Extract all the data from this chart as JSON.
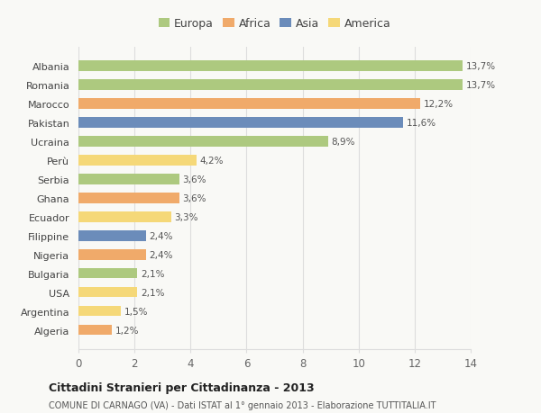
{
  "categories": [
    "Albania",
    "Romania",
    "Marocco",
    "Pakistan",
    "Ucraina",
    "Perù",
    "Serbia",
    "Ghana",
    "Ecuador",
    "Filippine",
    "Nigeria",
    "Bulgaria",
    "USA",
    "Argentina",
    "Algeria"
  ],
  "values": [
    13.7,
    13.7,
    12.2,
    11.6,
    8.9,
    4.2,
    3.6,
    3.6,
    3.3,
    2.4,
    2.4,
    2.1,
    2.1,
    1.5,
    1.2
  ],
  "labels": [
    "13,7%",
    "13,7%",
    "12,2%",
    "11,6%",
    "8,9%",
    "4,2%",
    "3,6%",
    "3,6%",
    "3,3%",
    "2,4%",
    "2,4%",
    "2,1%",
    "2,1%",
    "1,5%",
    "1,2%"
  ],
  "colors": [
    "#adc97f",
    "#adc97f",
    "#f0aa6a",
    "#6b8cba",
    "#adc97f",
    "#f5d878",
    "#adc97f",
    "#f0aa6a",
    "#f5d878",
    "#6b8cba",
    "#f0aa6a",
    "#adc97f",
    "#f5d878",
    "#f5d878",
    "#f0aa6a"
  ],
  "legend_labels": [
    "Europa",
    "Africa",
    "Asia",
    "America"
  ],
  "legend_colors": [
    "#adc97f",
    "#f0aa6a",
    "#6b8cba",
    "#f5d878"
  ],
  "title": "Cittadini Stranieri per Cittadinanza - 2013",
  "subtitle": "COMUNE DI CARNAGO (VA) - Dati ISTAT al 1° gennaio 2013 - Elaborazione TUTTITALIA.IT",
  "xlim": [
    0,
    14
  ],
  "xticks": [
    0,
    2,
    4,
    6,
    8,
    10,
    12,
    14
  ],
  "background_color": "#f9f9f6",
  "grid_color": "#dddddd"
}
